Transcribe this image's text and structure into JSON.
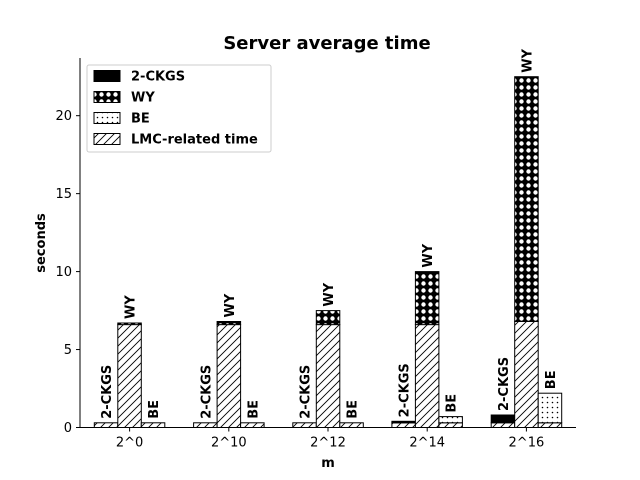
{
  "chart_data": {
    "type": "bar",
    "title": "Server average time",
    "xlabel": "m",
    "ylabel": "seconds",
    "ylim": [
      0,
      23.7
    ],
    "yticks": [
      0,
      5,
      10,
      15,
      20
    ],
    "categories": [
      "2^0",
      "2^10",
      "2^12",
      "2^14",
      "2^16"
    ],
    "groups": [
      "2-CKGS",
      "WY",
      "BE"
    ],
    "series": [
      {
        "name": "LMC-related time",
        "hatch": "diagonal",
        "values": {
          "2-CKGS": [
            0.3,
            0.3,
            0.3,
            0.3,
            0.3
          ],
          "WY": [
            6.6,
            6.6,
            6.6,
            6.6,
            6.8
          ],
          "BE": [
            0.3,
            0.3,
            0.3,
            0.3,
            0.3
          ]
        }
      },
      {
        "name": "2-CKGS",
        "hatch": "solid",
        "values": {
          "2-CKGS": [
            0.0,
            0.0,
            0.0,
            0.1,
            0.5
          ]
        }
      },
      {
        "name": "WY",
        "hatch": "circles",
        "values": {
          "WY": [
            0.1,
            0.2,
            0.9,
            3.4,
            15.7
          ]
        }
      },
      {
        "name": "BE",
        "hatch": "dots",
        "values": {
          "BE": [
            0.0,
            0.0,
            0.0,
            0.4,
            1.9
          ]
        }
      }
    ],
    "legend": {
      "position": "top-left",
      "entries": [
        {
          "label": "2-CKGS",
          "hatch": "solid"
        },
        {
          "label": "WY",
          "hatch": "circles"
        },
        {
          "label": "BE",
          "hatch": "dots"
        },
        {
          "label": "LMC-related time",
          "hatch": "diagonal"
        }
      ]
    },
    "colors": {
      "edge": "#000000",
      "fill": "#ffffff",
      "solid": "#000000"
    }
  }
}
